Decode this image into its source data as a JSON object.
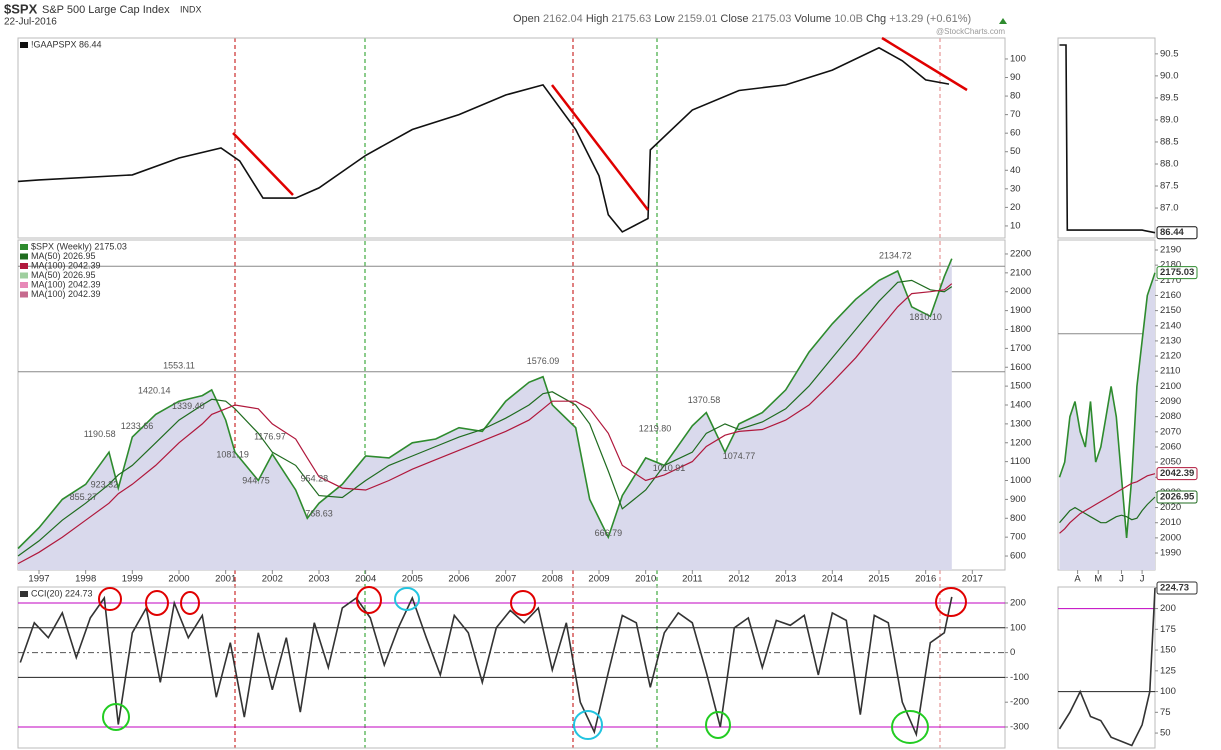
{
  "header": {
    "symbol": "$SPX",
    "name": "S&P 500 Large Cap Index",
    "exchange": "INDX",
    "date": "22-Jul-2016",
    "watermark": "@StockCharts.com",
    "quote": [
      {
        "label": "Open",
        "value": "2162.04"
      },
      {
        "label": "High",
        "value": "2175.63"
      },
      {
        "label": "Low",
        "value": "2159.01"
      },
      {
        "label": "Close",
        "value": "2175.03"
      },
      {
        "label": "Volume",
        "value": "10.0B"
      },
      {
        "label": "Chg",
        "value": "+13.29 (+0.61%)"
      }
    ]
  },
  "chart_data": [
    {
      "type": "line",
      "legend": true,
      "xlim": [
        1996.55,
        2017.7
      ],
      "ylim": [
        3.5,
        111.3
      ],
      "yticks": [
        10,
        20,
        30,
        40,
        50,
        60,
        70,
        80,
        90,
        100
      ],
      "x": [
        1996.55,
        1997,
        1999,
        2000,
        2000.9,
        2001.3,
        2001.8,
        2002.5,
        2003,
        2004,
        2005,
        2006,
        2007,
        2007.8,
        2008.5,
        2009,
        2009.2,
        2009.5,
        2009.9,
        2010.05,
        2010.1,
        2011,
        2012,
        2013,
        2014,
        2015,
        2015.5,
        2016,
        2016.5
      ],
      "series": [
        {
          "name": "!GAAPSPX 86.44",
          "color": "#111111",
          "values": [
            34,
            34.8,
            37.5,
            46.6,
            52,
            45,
            25,
            25,
            30.5,
            48,
            62,
            70,
            80.6,
            86,
            62,
            37,
            16,
            6.8,
            12,
            14,
            51,
            72.5,
            83,
            86,
            94,
            106,
            99,
            88.7,
            86.44
          ]
        }
      ]
    },
    {
      "type": "line",
      "legend": true,
      "area": 0,
      "xlim": [
        1996.55,
        2017.7
      ],
      "ylim": [
        526,
        2274
      ],
      "yticks": [
        600,
        700,
        800,
        900,
        1000,
        1100,
        1200,
        1300,
        1400,
        1500,
        1600,
        1700,
        1800,
        1900,
        2000,
        2100,
        2200
      ],
      "xticks": [
        1997,
        1998,
        1999,
        2000,
        2001,
        2002,
        2003,
        2004,
        2005,
        2006,
        2007,
        2008,
        2009,
        2010,
        2011,
        2012,
        2013,
        2014,
        2015,
        2016,
        2017
      ],
      "hlines": [
        {
          "value": 2134.72,
          "color": "#888888"
        },
        {
          "value": 1576.09,
          "color": "#888888"
        }
      ],
      "x": [
        1996.55,
        1997,
        1997.5,
        1998,
        1998.5,
        1998.7,
        1999,
        1999.5,
        2000,
        2000.5,
        2000.7,
        2001,
        2001.2,
        2001.7,
        2002,
        2002.5,
        2002.75,
        2003,
        2003.5,
        2004,
        2004.5,
        2005,
        2005.5,
        2006,
        2006.5,
        2007,
        2007.5,
        2007.8,
        2008,
        2008.5,
        2008.8,
        2009.2,
        2009.5,
        2010,
        2010.4,
        2011,
        2011.3,
        2011.7,
        2012,
        2012.5,
        2013,
        2013.5,
        2014,
        2014.5,
        2015,
        2015.4,
        2015.7,
        2016.1,
        2016.4,
        2016.56
      ],
      "series": [
        {
          "name": "$SPX (Weekly) 2175.03",
          "color": "#2e8b2e",
          "values": [
            640,
            750,
            900,
            980,
            1150,
            960,
            1230,
            1350,
            1420,
            1450,
            1480,
            1320,
            1150,
            1000,
            1140,
            950,
            800,
            880,
            980,
            1130,
            1120,
            1200,
            1220,
            1280,
            1260,
            1420,
            1520,
            1550,
            1400,
            1280,
            900,
            700,
            920,
            1120,
            1080,
            1290,
            1360,
            1150,
            1300,
            1360,
            1480,
            1680,
            1830,
            1960,
            2060,
            2110,
            1920,
            1870,
            2080,
            2175.03
          ]
        },
        {
          "name": "MA(50) 2026.95",
          "color": "#1f6b1f",
          "values": [
            600,
            680,
            790,
            880,
            980,
            1030,
            1080,
            1200,
            1320,
            1400,
            1430,
            1420,
            1380,
            1250,
            1150,
            1080,
            1000,
            920,
            910,
            1000,
            1080,
            1130,
            1180,
            1230,
            1270,
            1330,
            1400,
            1460,
            1470,
            1400,
            1300,
            1050,
            850,
            950,
            1080,
            1150,
            1250,
            1300,
            1270,
            1310,
            1380,
            1500,
            1650,
            1800,
            1950,
            2050,
            2060,
            2010,
            2000,
            2026.95
          ]
        },
        {
          "name": "MA(100) 2042.39",
          "color": "#b0183c",
          "values": [
            560,
            620,
            700,
            790,
            880,
            930,
            980,
            1080,
            1200,
            1300,
            1350,
            1380,
            1400,
            1380,
            1300,
            1220,
            1120,
            1020,
            960,
            950,
            1000,
            1060,
            1110,
            1160,
            1210,
            1260,
            1320,
            1380,
            1420,
            1420,
            1380,
            1250,
            1080,
            1000,
            1030,
            1100,
            1180,
            1240,
            1260,
            1270,
            1320,
            1400,
            1520,
            1650,
            1800,
            1920,
            1990,
            2000,
            2010,
            2042.39
          ]
        }
      ],
      "legend_extra": [
        {
          "name": "MA(50) 2026.95",
          "color": "#9fcf9f"
        },
        {
          "name": "MA(100) 2042.39",
          "color": "#e889b8"
        },
        {
          "name": "MA(100) 2042.39",
          "color": "#c66a8e"
        }
      ],
      "annotations": [
        {
          "x": 2000.0,
          "value": 1553.11,
          "label": "1553.11"
        },
        {
          "x": 1999.47,
          "value": 1420.14,
          "label": "1420.14"
        },
        {
          "x": 1998.3,
          "value": 1190.58,
          "label": "1190.58"
        },
        {
          "x": 2000.2,
          "value": 1339.4,
          "label": "1339.40"
        },
        {
          "x": 1999.1,
          "value": 1233.66,
          "label": "1233.66"
        },
        {
          "x": 1997.95,
          "value": 855.27,
          "label": "855.27"
        },
        {
          "x": 1998.4,
          "value": 923.32,
          "label": "923.32"
        },
        {
          "x": 2001.15,
          "value": 1081.19,
          "label": "1081.19"
        },
        {
          "x": 2001.95,
          "value": 1176.97,
          "label": "1176.97"
        },
        {
          "x": 2001.65,
          "value": 944.75,
          "label": "944.75"
        },
        {
          "x": 2002.9,
          "value": 954.28,
          "label": "954.28"
        },
        {
          "x": 2003.0,
          "value": 768.63,
          "label": "768.63"
        },
        {
          "x": 2007.8,
          "value": 1576.09,
          "label": "1576.09"
        },
        {
          "x": 2010.2,
          "value": 1219.8,
          "label": "1219.80"
        },
        {
          "x": 2011.25,
          "value": 1370.58,
          "label": "1370.58"
        },
        {
          "x": 2010.5,
          "value": 1010.91,
          "label": "1010.91"
        },
        {
          "x": 2012.0,
          "value": 1074.77,
          "label": "1074.77"
        },
        {
          "x": 2009.2,
          "value": 666.79,
          "label": "666.79"
        },
        {
          "x": 2015.35,
          "value": 2134.72,
          "label": "2134.72"
        },
        {
          "x": 2016.0,
          "value": 1810.1,
          "label": "1810.10"
        }
      ]
    },
    {
      "type": "line",
      "legend": true,
      "xlim": [
        1996.55,
        2017.7
      ],
      "ylim": [
        -384.7,
        264.5
      ],
      "yticks": [
        -300,
        -200,
        -100,
        0,
        100,
        200
      ],
      "hlines": [
        {
          "value": 200,
          "color": "#c000c0"
        },
        {
          "value": 100,
          "color": "#222222"
        },
        {
          "value": 0,
          "color": "#555555"
        },
        {
          "value": -100,
          "color": "#222222"
        },
        {
          "value": -300,
          "color": "#c000c0"
        }
      ],
      "x": [
        1996.6,
        1996.9,
        1997.2,
        1997.5,
        1997.8,
        1998.1,
        1998.4,
        1998.7,
        1999.0,
        1999.3,
        1999.6,
        1999.9,
        2000.2,
        2000.5,
        2000.8,
        2001.1,
        2001.4,
        2001.7,
        2002.0,
        2002.3,
        2002.6,
        2002.9,
        2003.2,
        2003.5,
        2003.8,
        2004.1,
        2004.4,
        2004.7,
        2005.0,
        2005.3,
        2005.6,
        2005.9,
        2006.2,
        2006.5,
        2006.8,
        2007.1,
        2007.4,
        2007.7,
        2008.0,
        2008.3,
        2008.6,
        2008.9,
        2009.2,
        2009.5,
        2009.8,
        2010.1,
        2010.4,
        2010.7,
        2011.0,
        2011.3,
        2011.6,
        2011.9,
        2012.2,
        2012.5,
        2012.8,
        2013.1,
        2013.4,
        2013.7,
        2014.0,
        2014.3,
        2014.6,
        2014.9,
        2015.2,
        2015.5,
        2015.8,
        2016.1,
        2016.4,
        2016.56
      ],
      "series": [
        {
          "name": "CCI(20) 224.73",
          "color": "#333333",
          "values": [
            -40,
            120,
            60,
            160,
            -20,
            140,
            220,
            -290,
            80,
            180,
            -120,
            200,
            60,
            150,
            -180,
            40,
            -260,
            80,
            -150,
            60,
            -240,
            120,
            -60,
            180,
            220,
            140,
            -50,
            100,
            220,
            60,
            -90,
            150,
            80,
            -120,
            100,
            170,
            120,
            180,
            -70,
            120,
            -200,
            -320,
            -80,
            150,
            120,
            -140,
            80,
            160,
            120,
            -80,
            -300,
            100,
            140,
            -60,
            130,
            110,
            150,
            -90,
            160,
            130,
            -250,
            150,
            120,
            -200,
            -330,
            40,
            80,
            224.73
          ]
        }
      ]
    },
    {
      "type": "line",
      "tags": true,
      "xlim": [
        2016.174,
        2016.55
      ],
      "ylim": [
        86.32,
        90.86
      ],
      "yticks": [
        {
          "value": 87,
          "label": "87.0"
        },
        {
          "value": 87.5,
          "label": "87.5"
        },
        {
          "value": 88,
          "label": "88.0"
        },
        {
          "value": 88.5,
          "label": "88.5"
        },
        {
          "value": 89,
          "label": "89.0"
        },
        {
          "value": 89.5,
          "label": "89.5"
        },
        {
          "value": 90,
          "label": "90.0"
        },
        {
          "value": 90.5,
          "label": "90.5"
        }
      ],
      "x": [
        2016.18,
        2016.205,
        2016.21,
        2016.5,
        2016.55
      ],
      "series": [
        {
          "color": "#111111",
          "values": [
            90.7,
            90.7,
            86.5,
            86.5,
            86.44
          ]
        }
      ]
    },
    {
      "type": "line",
      "tags": true,
      "area": 0,
      "xlim": [
        2016.174,
        2016.55
      ],
      "ylim": [
        1978.8,
        2196.6
      ],
      "yticks": [
        1990,
        2000,
        2010,
        2020,
        2030,
        2040,
        2050,
        2060,
        2070,
        2080,
        2090,
        2100,
        2110,
        2120,
        2130,
        2140,
        2150,
        2160,
        2170,
        2180,
        2190
      ],
      "xticks": [
        {
          "value": 2016.25,
          "label": "A"
        },
        {
          "value": 2016.33,
          "label": "M"
        },
        {
          "value": 2016.42,
          "label": "J"
        },
        {
          "value": 2016.5,
          "label": "J"
        }
      ],
      "hlines": [
        {
          "value": 2134.72,
          "color": "#888888"
        }
      ],
      "x": [
        2016.18,
        2016.2,
        2016.22,
        2016.24,
        2016.26,
        2016.28,
        2016.3,
        2016.32,
        2016.34,
        2016.36,
        2016.38,
        2016.4,
        2016.42,
        2016.44,
        2016.46,
        2016.48,
        2016.5,
        2016.52,
        2016.55
      ],
      "series": [
        {
          "color": "#2e8b2e",
          "values": [
            2040,
            2050,
            2080,
            2090,
            2070,
            2060,
            2090,
            2050,
            2060,
            2080,
            2100,
            2080,
            2040,
            2000,
            2040,
            2100,
            2130,
            2160,
            2175.03
          ]
        },
        {
          "color": "#1f6b1f",
          "values": [
            2010,
            2014,
            2018,
            2020,
            2018,
            2016,
            2014,
            2012,
            2010,
            2010,
            2012,
            2014,
            2015,
            2014,
            2012,
            2013,
            2018,
            2022,
            2026.95
          ]
        },
        {
          "color": "#b0183c",
          "values": [
            2003,
            2006,
            2010,
            2013,
            2016,
            2018,
            2020,
            2022,
            2024,
            2026,
            2028,
            2030,
            2032,
            2034,
            2036,
            2037,
            2039,
            2041,
            2042.39
          ]
        }
      ]
    },
    {
      "type": "line",
      "tags": true,
      "xlim": [
        2016.174,
        2016.55
      ],
      "ylim": [
        32,
        226
      ],
      "yticks": [
        50,
        75,
        100,
        125,
        150,
        175,
        200,
        225
      ],
      "hlines": [
        {
          "value": 200,
          "color": "#c000c0"
        },
        {
          "value": 100,
          "color": "#222222"
        }
      ],
      "x": [
        2016.18,
        2016.22,
        2016.26,
        2016.3,
        2016.34,
        2016.38,
        2016.42,
        2016.46,
        2016.5,
        2016.53,
        2016.55
      ],
      "series": [
        {
          "color": "#333333",
          "values": [
            55,
            75,
            100,
            70,
            65,
            45,
            40,
            35,
            60,
            100,
            224.73
          ]
        }
      ]
    }
  ]
}
